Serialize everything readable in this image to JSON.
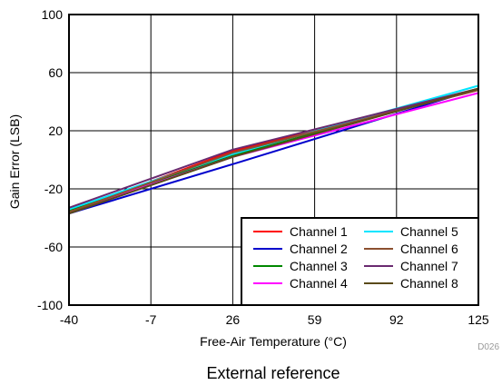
{
  "chart_data": {
    "type": "line",
    "xlabel": "Free-Air Temperature (°C)",
    "ylabel": "Gain Error (LSB)",
    "x_ticks": [
      -40,
      -7,
      26,
      59,
      92,
      125
    ],
    "y_ticks": [
      -100,
      -60,
      -20,
      20,
      60,
      100
    ],
    "xlim": [
      -40,
      125
    ],
    "ylim": [
      -100,
      100
    ],
    "grid": true,
    "legend_position": "bottom-right",
    "code_label": "D026",
    "caption": "External reference",
    "x": [
      -40,
      26,
      125
    ],
    "series": [
      {
        "name": "Channel 1",
        "color": "#ff0000",
        "values": [
          -36,
          6,
          48
        ]
      },
      {
        "name": "Channel 2",
        "color": "#0000cc",
        "values": [
          -37,
          -3,
          49
        ]
      },
      {
        "name": "Channel 3",
        "color": "#008800",
        "values": [
          -35,
          3,
          49
        ]
      },
      {
        "name": "Channel 4",
        "color": "#ff00ff",
        "values": [
          -36,
          2,
          46
        ]
      },
      {
        "name": "Channel 5",
        "color": "#00e5ff",
        "values": [
          -34,
          4,
          51
        ]
      },
      {
        "name": "Channel 6",
        "color": "#8b5030",
        "values": [
          -36,
          5,
          48
        ]
      },
      {
        "name": "Channel 7",
        "color": "#6a2a70",
        "values": [
          -33,
          7,
          49
        ]
      },
      {
        "name": "Channel 8",
        "color": "#5a4a1a",
        "values": [
          -37,
          2,
          49
        ]
      }
    ]
  }
}
